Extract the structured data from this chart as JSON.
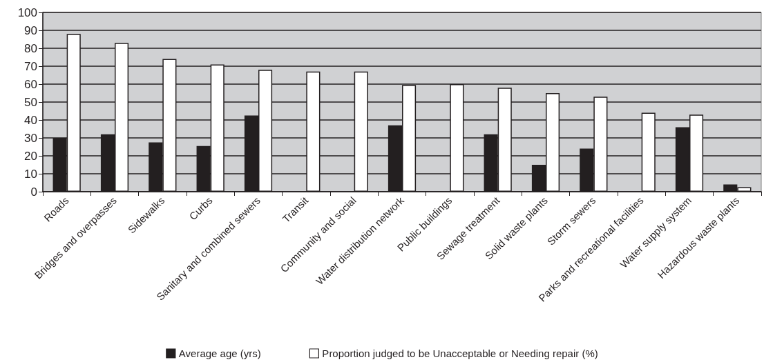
{
  "chart_data": {
    "type": "bar",
    "categories": [
      "Roads",
      "Bridges and overpasses",
      "Sidewalks",
      "Curbs",
      "Sanitary and combined sewers",
      "Transit",
      "Community and social",
      "Water distribution network",
      "Public buildings",
      "Sewage treatment",
      "Solid waste plants",
      "Storm sewers",
      "Parks and recreational facilities",
      "Water supply system",
      "Hazardous waste plants"
    ],
    "series": [
      {
        "name": "Average age (yrs)",
        "color": "#231f20",
        "values": [
          30,
          32,
          27.5,
          25.5,
          42.5,
          null,
          null,
          37,
          null,
          32,
          15,
          24,
          null,
          36,
          4
        ]
      },
      {
        "name": "Proportion judged to be Unacceptable or Needing repair (%)",
        "color": "#ffffff",
        "values": [
          88,
          83,
          74,
          71,
          68,
          67,
          67,
          59.5,
          60,
          58,
          55,
          53,
          44,
          43,
          2.5
        ]
      }
    ],
    "ylim": [
      0,
      100
    ],
    "yticks": [
      0,
      10,
      20,
      30,
      40,
      50,
      60,
      70,
      80,
      90,
      100
    ],
    "grid": "y",
    "legend": "bottom"
  }
}
